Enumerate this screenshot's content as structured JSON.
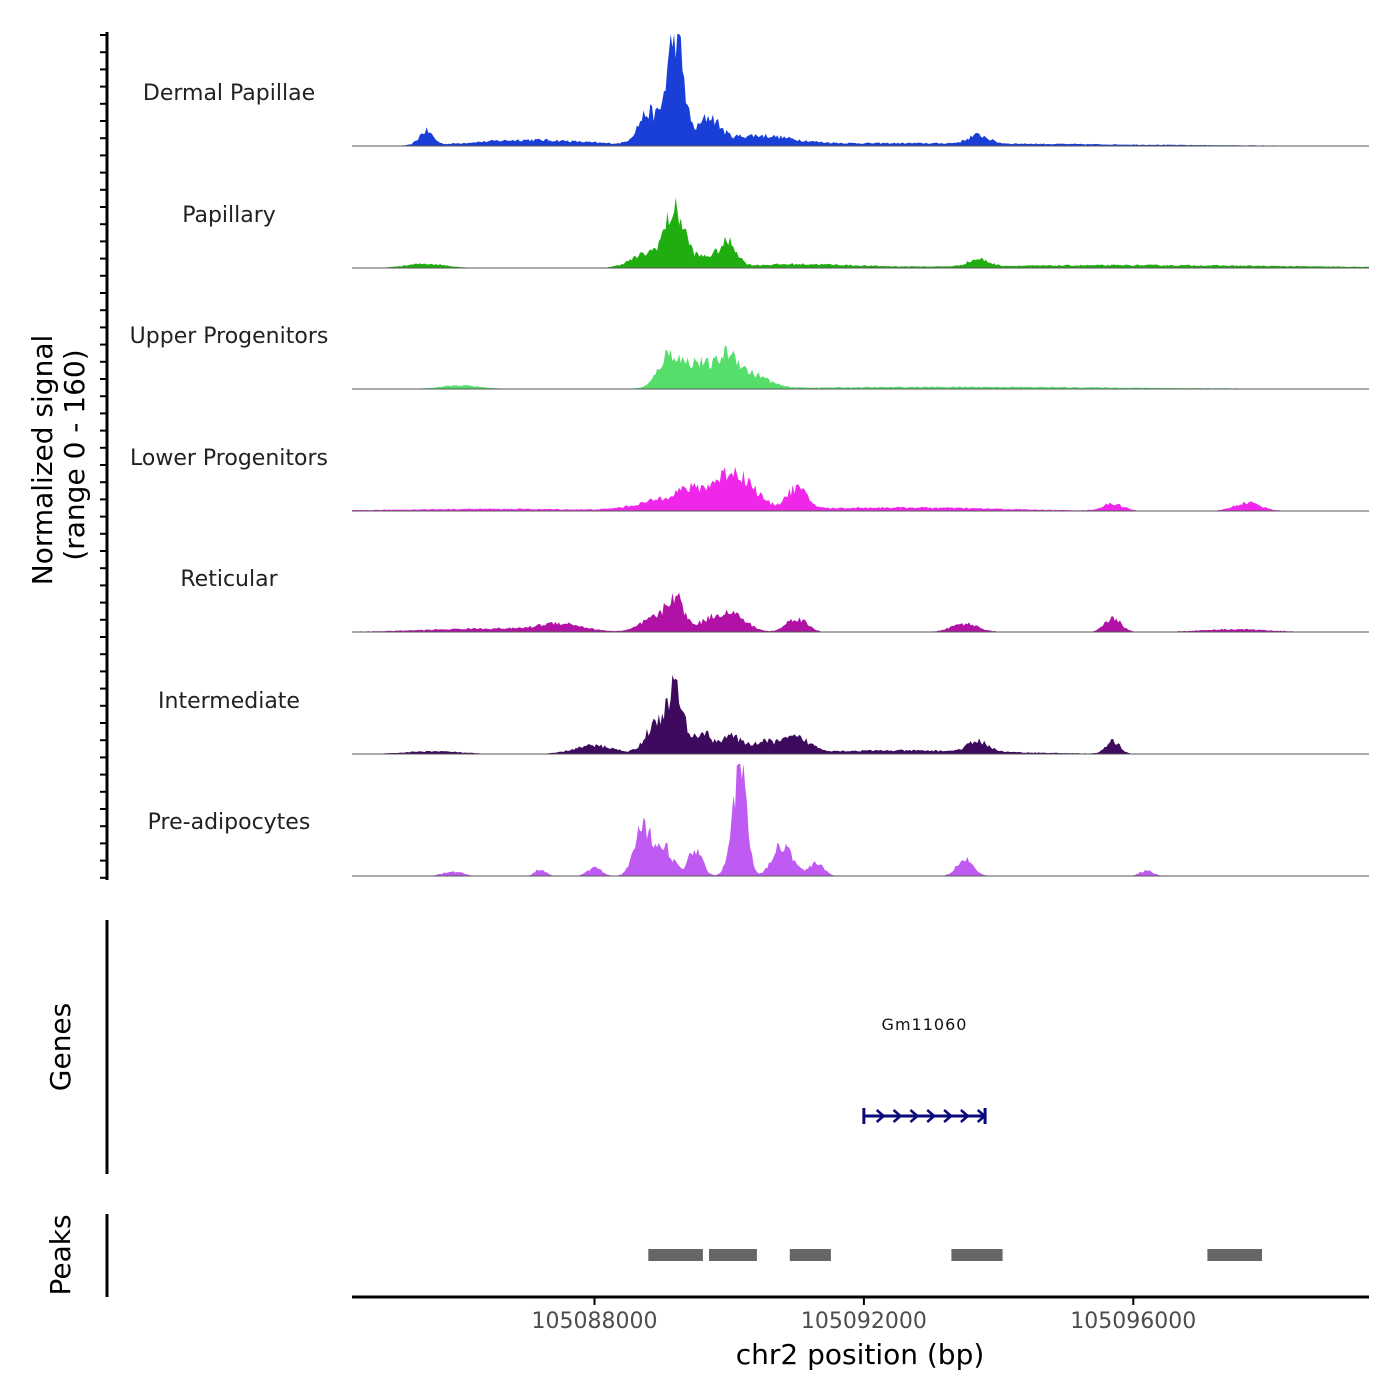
{
  "chart_data": {
    "type": "area",
    "title": "",
    "y_axis_title": [
      "Normalized signal",
      "(range 0 - 160)"
    ],
    "y_range": [
      0,
      160
    ],
    "xlabel": "chr2 position (bp)",
    "xlim": [
      105084400,
      105099500
    ],
    "x_ticks": [
      105088000,
      105092000,
      105096000
    ],
    "x_tick_labels": [
      "105088000",
      "105092000",
      "105096000"
    ],
    "tracks": [
      {
        "name": "Dermal Papillae",
        "color": "#1a3fd9",
        "peaks": [
          [
            105085500,
            20,
            100
          ],
          [
            105089200,
            160,
            120
          ],
          [
            105088800,
            45,
            150
          ],
          [
            105089700,
            35,
            150
          ],
          [
            105090400,
            12,
            500
          ],
          [
            105093700,
            12,
            150
          ],
          [
            105087000,
            8,
            800
          ],
          [
            105092500,
            4,
            3000
          ]
        ]
      },
      {
        "name": "Papillary",
        "color": "#20ad10",
        "peaks": [
          [
            105089200,
            75,
            150
          ],
          [
            105088800,
            20,
            250
          ],
          [
            105090000,
            30,
            120
          ],
          [
            105089700,
            15,
            200
          ],
          [
            105093700,
            10,
            150
          ],
          [
            105085500,
            6,
            300
          ],
          [
            105091000,
            5,
            800
          ],
          [
            105096000,
            4,
            2500
          ]
        ]
      },
      {
        "name": "Upper Progenitors",
        "color": "#55de6a",
        "peaks": [
          [
            105089100,
            42,
            150
          ],
          [
            105089500,
            25,
            200
          ],
          [
            105090000,
            35,
            150
          ],
          [
            105090400,
            12,
            200
          ],
          [
            105089800,
            15,
            450
          ],
          [
            105086000,
            5,
            300
          ],
          [
            105093500,
            3,
            2500
          ]
        ]
      },
      {
        "name": "Lower Progenitors",
        "color": "#f026ea",
        "peaks": [
          [
            105090000,
            40,
            200
          ],
          [
            105089500,
            25,
            300
          ],
          [
            105090300,
            25,
            200
          ],
          [
            105091000,
            30,
            150
          ],
          [
            105089000,
            12,
            400
          ],
          [
            105095700,
            10,
            150
          ],
          [
            105097700,
            12,
            200
          ],
          [
            105092500,
            5,
            1500
          ],
          [
            105086500,
            3,
            1500
          ]
        ]
      },
      {
        "name": "Reticular",
        "color": "#b012a6",
        "peaks": [
          [
            105089200,
            45,
            120
          ],
          [
            105088900,
            20,
            200
          ],
          [
            105089800,
            20,
            250
          ],
          [
            105090100,
            15,
            200
          ],
          [
            105091000,
            20,
            150
          ],
          [
            105093500,
            12,
            200
          ],
          [
            105095700,
            20,
            120
          ],
          [
            105087500,
            10,
            300
          ],
          [
            105086500,
            5,
            1000
          ],
          [
            105097500,
            4,
            500
          ]
        ]
      },
      {
        "name": "Intermediate",
        "color": "#3d0a5e",
        "peaks": [
          [
            105089200,
            90,
            120
          ],
          [
            105088900,
            40,
            150
          ],
          [
            105089600,
            30,
            120
          ],
          [
            105090000,
            25,
            150
          ],
          [
            105090500,
            15,
            200
          ],
          [
            105091000,
            20,
            200
          ],
          [
            105088000,
            12,
            300
          ],
          [
            105093700,
            15,
            150
          ],
          [
            105095700,
            18,
            100
          ],
          [
            105085600,
            4,
            400
          ],
          [
            105092500,
            5,
            1500
          ]
        ]
      },
      {
        "name": "Pre-adipocytes",
        "color": "#bf5af2",
        "peaks": [
          [
            105088700,
            60,
            120
          ],
          [
            105089000,
            45,
            150
          ],
          [
            105089500,
            40,
            100
          ],
          [
            105090100,
            85,
            100
          ],
          [
            105090200,
            100,
            80
          ],
          [
            105090800,
            45,
            150
          ],
          [
            105091300,
            20,
            100
          ],
          [
            105093500,
            25,
            120
          ],
          [
            105087200,
            10,
            80
          ],
          [
            105088000,
            12,
            100
          ],
          [
            105096200,
            8,
            100
          ],
          [
            105085900,
            6,
            150
          ]
        ]
      }
    ],
    "genes": [
      {
        "name": "Gm11060",
        "start": 105092000,
        "end": 105093800,
        "strand": "+",
        "color": "#0a0a7a"
      }
    ],
    "peak_regions": [
      [
        105088800,
        105089700
      ],
      [
        105089700,
        105090500
      ],
      [
        105090900,
        105091600
      ],
      [
        105093300,
        105094150
      ],
      [
        105097100,
        105098000
      ]
    ],
    "panel_labels": {
      "genes": "Genes",
      "peaks": "Peaks"
    }
  }
}
